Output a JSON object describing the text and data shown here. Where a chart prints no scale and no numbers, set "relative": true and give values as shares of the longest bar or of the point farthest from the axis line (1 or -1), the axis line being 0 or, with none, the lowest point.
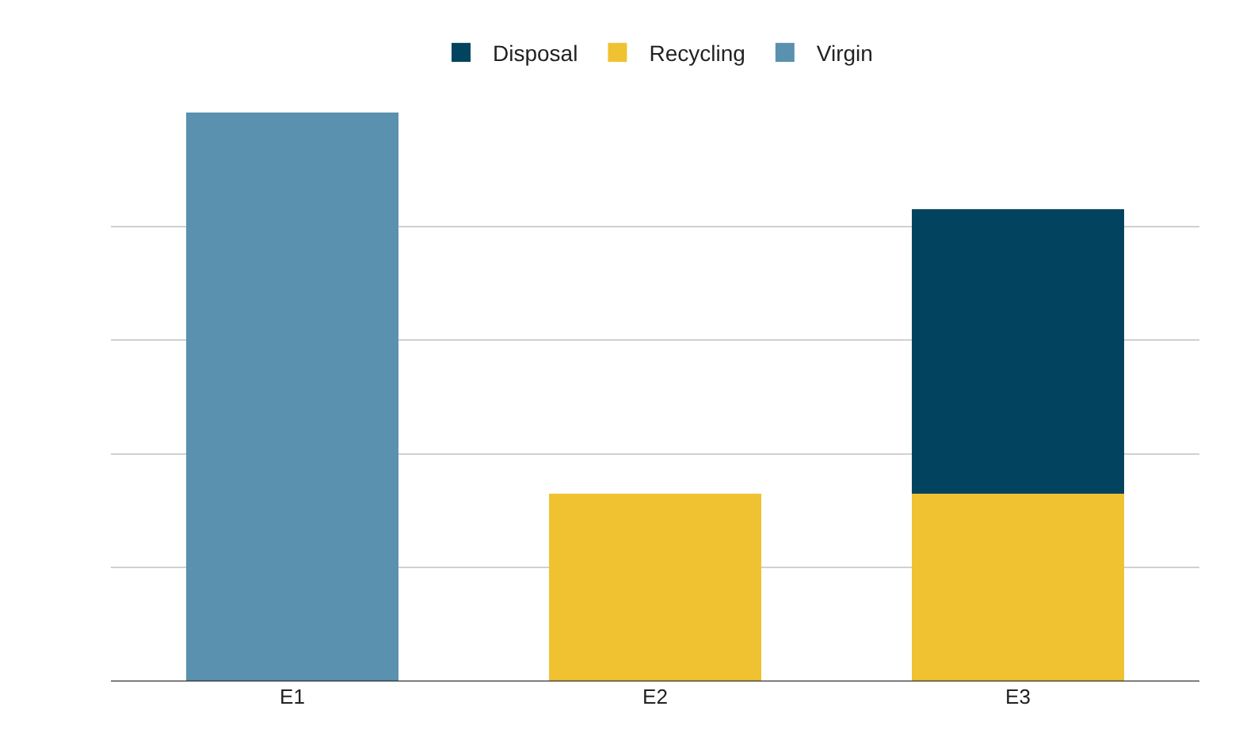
{
  "chart_data": {
    "type": "bar",
    "stacked": true,
    "relative": true,
    "categories": [
      "E1",
      "E2",
      "E3"
    ],
    "series": [
      {
        "name": "Virgin",
        "color": "#5a91ae",
        "values": [
          1,
          null,
          null
        ]
      },
      {
        "name": "Recycling",
        "color": "#f0c232",
        "values": [
          null,
          0.33,
          0.33
        ]
      },
      {
        "name": "Disposal",
        "color": "#02445f",
        "values": [
          null,
          null,
          0.5
        ]
      }
    ],
    "grid": "y",
    "legend": "top"
  }
}
